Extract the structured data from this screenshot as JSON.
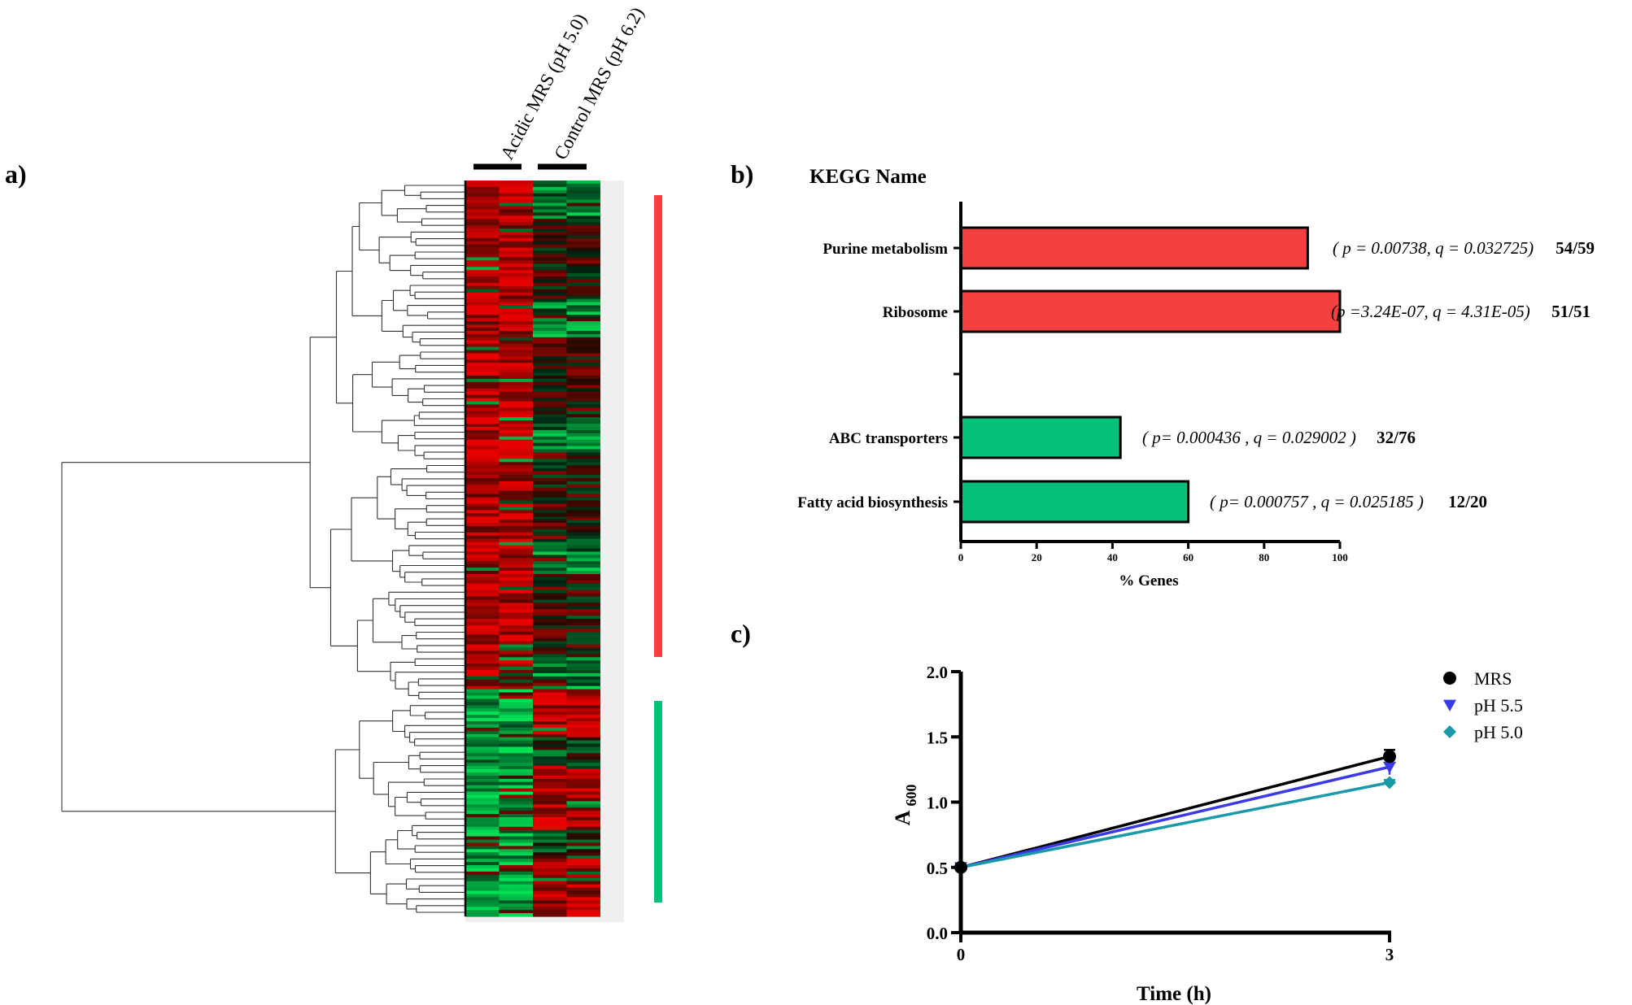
{
  "panels": {
    "a": {
      "label": "a)"
    },
    "b": {
      "label": "b)"
    },
    "c": {
      "label": "c)"
    }
  },
  "colors": {
    "up": "#f54040",
    "down": "#06bf78",
    "heat_red": "#d40000",
    "heat_green": "#00d040",
    "mrs": "#000000",
    "ph55": "#3a3ae8",
    "ph50": "#1a9aa8"
  },
  "chart_data": [
    {
      "type": "heatmap",
      "column_groups": [
        "Acidic MRS (pH 5.0)",
        "Control MRS (pH 6.2)"
      ],
      "columns_per_group": 2,
      "clusters": [
        {
          "name": "",
          "color": "#f54040",
          "pattern": "acidic high, control low"
        },
        {
          "name": "",
          "color": "#06bf78",
          "pattern": "acidic low, control high"
        }
      ]
    },
    {
      "type": "bar",
      "orientation": "horizontal",
      "title": "KEGG Name",
      "xlabel": "% Genes",
      "xlim": [
        0,
        100
      ],
      "xticks": [
        0,
        20,
        40,
        60,
        80,
        100
      ],
      "categories": [
        "Purine metabolism",
        "Ribosome",
        "ABC transporters",
        "Fatty acid biosynthesis"
      ],
      "values": [
        91.5,
        100,
        42.1,
        60
      ],
      "colors": [
        "#f54040",
        "#f54040",
        "#06bf78",
        "#06bf78"
      ],
      "annotations": [
        "( p = 0.00738, q = 0.032725)",
        "(p =3.24E-07, q = 4.31E-05)",
        "( p= 0.000436 , q = 0.029002 )",
        "( p=  0.000757 , q = 0.025185 )"
      ],
      "counts": [
        "54/59",
        "51/51",
        "32/76",
        "12/20"
      ]
    },
    {
      "type": "line",
      "xlabel": "Time (h)",
      "ylabel_main": "A",
      "ylabel_sub": "600",
      "xlim": [
        0,
        3
      ],
      "ylim": [
        0,
        2.0
      ],
      "xticks": [
        "0",
        "3"
      ],
      "yticks": [
        "0.0",
        "0.5",
        "1.0",
        "1.5",
        "2.0"
      ],
      "x": [
        0,
        3
      ],
      "legend_position": "top-right",
      "series": [
        {
          "name": "MRS",
          "values": [
            0.5,
            1.35
          ],
          "errors": [
            0.02,
            0.05
          ],
          "marker": "circle",
          "color": "#000000"
        },
        {
          "name": "pH 5.5",
          "values": [
            0.5,
            1.27
          ],
          "errors": [
            0.02,
            0.06
          ],
          "marker": "triangle-down",
          "color": "#3a3ae8"
        },
        {
          "name": "pH 5.0",
          "values": [
            0.5,
            1.15
          ],
          "errors": [
            0.02,
            0.02
          ],
          "marker": "diamond",
          "color": "#1a9aa8"
        }
      ]
    }
  ]
}
